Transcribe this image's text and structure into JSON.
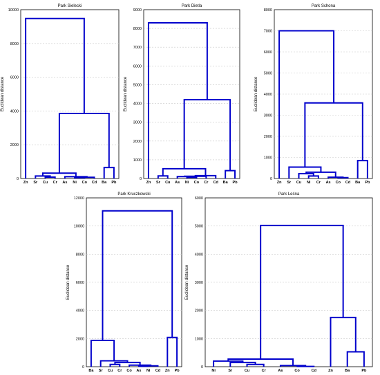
{
  "chart_data": [
    {
      "type": "dendrogram",
      "title": "Park Sielecki",
      "ylabel": "Euclidean distance",
      "ylim": [
        0,
        10000
      ],
      "yticks": [
        0,
        2000,
        4000,
        6000,
        8000,
        10000
      ],
      "leaves": [
        "Zn",
        "Sr",
        "Cu",
        "Cr",
        "As",
        "Ni",
        "Co",
        "Cd",
        "Ba",
        "Pb"
      ],
      "merges": [
        {
          "a": 5,
          "b": 6,
          "height": 50
        },
        {
          "a": 10,
          "b": 7,
          "height": 70
        },
        {
          "a": 2,
          "b": 3,
          "height": 80
        },
        {
          "a": 4,
          "b": 11,
          "height": 110
        },
        {
          "a": 1,
          "b": 12,
          "height": 150
        },
        {
          "a": 14,
          "b": 13,
          "height": 320
        },
        {
          "a": 8,
          "b": 9,
          "height": 650
        },
        {
          "a": 15,
          "b": 16,
          "height": 3850
        },
        {
          "a": 0,
          "b": 17,
          "height": 9480
        }
      ]
    },
    {
      "type": "dendrogram",
      "title": "Park Dietla",
      "ylabel": "Euclidean distance",
      "ylim": [
        0,
        9000
      ],
      "yticks": [
        0,
        1000,
        2000,
        3000,
        4000,
        5000,
        6000,
        7000,
        8000,
        9000
      ],
      "leaves": [
        "Zn",
        "Sr",
        "Cu",
        "As",
        "Ni",
        "Co",
        "Cr",
        "Cd",
        "Ba",
        "Pb"
      ],
      "merges": [
        {
          "a": 4,
          "b": 5,
          "height": 60
        },
        {
          "a": 3,
          "b": 10,
          "height": 100
        },
        {
          "a": 11,
          "b": 6,
          "height": 120
        },
        {
          "a": 12,
          "b": 7,
          "height": 150
        },
        {
          "a": 1,
          "b": 2,
          "height": 140
        },
        {
          "a": 14,
          "b": 13,
          "height": 520
        },
        {
          "a": 8,
          "b": 9,
          "height": 420
        },
        {
          "a": 15,
          "b": 16,
          "height": 4200
        },
        {
          "a": 0,
          "b": 17,
          "height": 8300
        }
      ]
    },
    {
      "type": "dendrogram",
      "title": "Park Schona",
      "ylabel": "Euclidean distance",
      "ylim": [
        0,
        8000
      ],
      "yticks": [
        0,
        1000,
        2000,
        3000,
        4000,
        5000,
        6000,
        7000,
        8000
      ],
      "leaves": [
        "Zn",
        "Sr",
        "Cu",
        "Ni",
        "Cr",
        "As",
        "Co",
        "Cd",
        "Ba",
        "Pb"
      ],
      "merges": [
        {
          "a": 3,
          "b": 4,
          "height": 120
        },
        {
          "a": 6,
          "b": 7,
          "height": 40
        },
        {
          "a": 5,
          "b": 11,
          "height": 60
        },
        {
          "a": 2,
          "b": 10,
          "height": 230
        },
        {
          "a": 13,
          "b": 12,
          "height": 300
        },
        {
          "a": 1,
          "b": 14,
          "height": 540
        },
        {
          "a": 8,
          "b": 9,
          "height": 850
        },
        {
          "a": 15,
          "b": 16,
          "height": 3580
        },
        {
          "a": 0,
          "b": 17,
          "height": 7000
        }
      ]
    },
    {
      "type": "dendrogram",
      "title": "Park Kruczkowski",
      "ylabel": "Euclidean distance",
      "ylim": [
        0,
        12000
      ],
      "yticks": [
        0,
        2000,
        4000,
        6000,
        8000,
        10000,
        12000
      ],
      "leaves": [
        "Ba",
        "Sr",
        "Cu",
        "Cr",
        "Co",
        "As",
        "Ni",
        "Cd",
        "Zn",
        "Pb"
      ],
      "merges": [
        {
          "a": 5,
          "b": 6,
          "height": 30
        },
        {
          "a": 10,
          "b": 7,
          "height": 60
        },
        {
          "a": 4,
          "b": 11,
          "height": 110
        },
        {
          "a": 2,
          "b": 3,
          "height": 160
        },
        {
          "a": 13,
          "b": 12,
          "height": 300
        },
        {
          "a": 1,
          "b": 14,
          "height": 420
        },
        {
          "a": 0,
          "b": 15,
          "height": 1870
        },
        {
          "a": 8,
          "b": 9,
          "height": 2080
        },
        {
          "a": 16,
          "b": 17,
          "height": 11080
        }
      ]
    },
    {
      "type": "dendrogram",
      "title": "Park Leśna",
      "ylabel": "Euclidean distance",
      "ylim": [
        0,
        6000
      ],
      "yticks": [
        0,
        1000,
        2000,
        3000,
        4000,
        5000,
        6000
      ],
      "leaves": [
        "Ni",
        "Sr",
        "Cu",
        "Cr",
        "As",
        "Co",
        "Cd",
        "Zn",
        "Ba",
        "Pb"
      ],
      "merges": [
        {
          "a": 5,
          "b": 6,
          "height": 10
        },
        {
          "a": 4,
          "b": 10,
          "height": 40
        },
        {
          "a": 2,
          "b": 3,
          "height": 80
        },
        {
          "a": 1,
          "b": 12,
          "height": 150
        },
        {
          "a": 0,
          "b": 13,
          "height": 200
        },
        {
          "a": 14,
          "b": 11,
          "height": 270
        },
        {
          "a": 8,
          "b": 9,
          "height": 530
        },
        {
          "a": 7,
          "b": 16,
          "height": 1750
        },
        {
          "a": 15,
          "b": 17,
          "height": 5020
        }
      ]
    }
  ]
}
